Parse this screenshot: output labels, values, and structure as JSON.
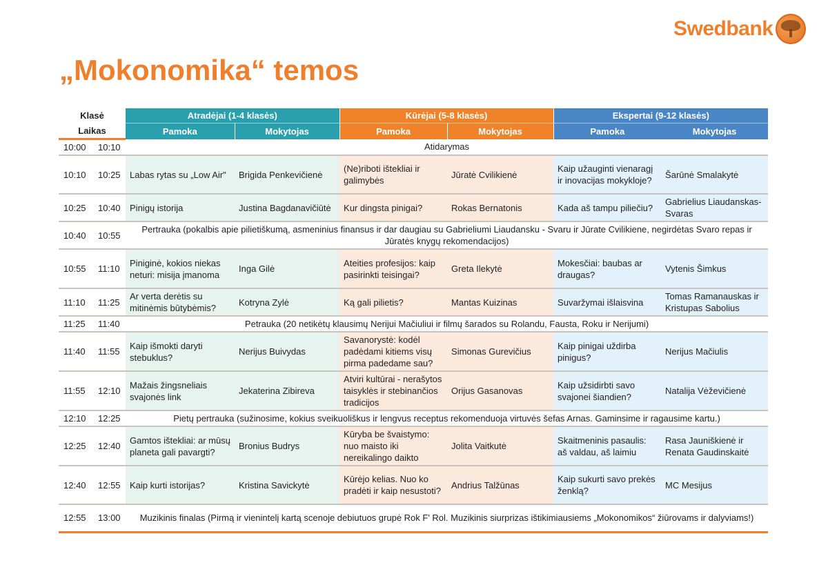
{
  "brand": {
    "name": "Swedbank",
    "accent": "#ee7f2d"
  },
  "title": "„Mokonomika“ temos",
  "header": {
    "class_label": "Klasė",
    "time_label": "Laikas",
    "groups": [
      {
        "name": "Atradėjai (1-4 klasės)",
        "color": "#2a9fae",
        "bg": "#e7f3ef"
      },
      {
        "name": "Kūrėjai (5-8 klasės)",
        "color": "#f0822a",
        "bg": "#fce9de"
      },
      {
        "name": "Ekspertai (9-12 klasės)",
        "color": "#4a86c6",
        "bg": "#e3f1fb"
      }
    ],
    "lesson_label": "Pamoka",
    "teacher_label": "Mokytojas"
  },
  "rows": [
    {
      "start": "10:00",
      "end": "10:10",
      "break": "Atidarymas"
    },
    {
      "start": "10:10",
      "end": "10:25",
      "sessions": [
        {
          "lesson": "Labas rytas su „Low Air\"",
          "teacher": "Brigida Penkevičienė"
        },
        {
          "lesson": "(Ne)riboti ištekliai ir galimybės",
          "teacher": "Jūratė Cvilikienė"
        },
        {
          "lesson": "Kaip užauginti vienaragį ir inovacijas mokykloje?",
          "teacher": "Šarūnė Smalakytė"
        }
      ]
    },
    {
      "start": "10:25",
      "end": "10:40",
      "sessions": [
        {
          "lesson": "Pinigų istorija",
          "teacher": "Justina Bagdanavičiūtė"
        },
        {
          "lesson": "Kur dingsta pinigai?",
          "teacher": "Rokas Bernatonis"
        },
        {
          "lesson": "Kada aš tampu piliečiu?",
          "teacher": "Gabrielius Liaudanskas-Svaras"
        }
      ]
    },
    {
      "start": "10:40",
      "end": "10:55",
      "break": "Pertrauka (pokalbis apie pilietiškumą, asmeninius finansus ir dar daugiau su Gabrieliumi Liaudansku - Svaru ir Jūrate Cvilikiene, negirdėtas Svaro repas ir Jūratės knygų rekomendacijos)"
    },
    {
      "start": "10:55",
      "end": "11:10",
      "sessions": [
        {
          "lesson": "Piniginė, kokios niekas neturi: misija įmanoma",
          "teacher": "Inga Gilė"
        },
        {
          "lesson": "Ateities profesijos: kaip pasirinkti teisingai?",
          "teacher": "Greta Ilekytė"
        },
        {
          "lesson": "Mokesčiai: baubas ar draugas?",
          "teacher": "Vytenis Šimkus"
        }
      ]
    },
    {
      "start": "11:10",
      "end": "11:25",
      "sessions": [
        {
          "lesson": "Ar verta derėtis su mitinėmis būtybėmis?",
          "teacher": "Kotryna Zylė"
        },
        {
          "lesson": "Ką gali pilietis?",
          "teacher": "Mantas Kuizinas"
        },
        {
          "lesson": "Suvaržymai išlaisvina",
          "teacher": "Tomas Ramanauskas ir Kristupas Sabolius"
        }
      ]
    },
    {
      "start": "11:25",
      "end": "11:40",
      "break": "Petrauka (20 netikėtų klausimų Nerijui Mačiuliui ir filmų šarados su Rolandu, Fausta, Roku ir Nerijumi)"
    },
    {
      "start": "11:40",
      "end": "11:55",
      "sessions": [
        {
          "lesson": "Kaip išmokti daryti stebuklus?",
          "teacher": "Nerijus Buivydas"
        },
        {
          "lesson": "Savanorystė: kodėl padėdami kitiems visų pirma padedame sau?",
          "teacher": "Simonas Gurevičius"
        },
        {
          "lesson": "Kaip pinigai uždirba pinigus?",
          "teacher": "Nerijus Mačiulis"
        }
      ]
    },
    {
      "start": "11:55",
      "end": "12:10",
      "sessions": [
        {
          "lesson": "Mažais žingsneliais svajonės link",
          "teacher": "Jekaterina Zibireva"
        },
        {
          "lesson": "Atviri kultūrai - nerašytos taisyklės ir stebinančios tradicijos",
          "teacher": "Orijus Gasanovas"
        },
        {
          "lesson": "Kaip užsidirbti savo svajonei šiandien?",
          "teacher": "Natalija Vėževičienė"
        }
      ]
    },
    {
      "start": "12:10",
      "end": "12:25",
      "break": "Pietų pertrauka (sužinosime, kokius sveikuoliškus ir lengvus receptus rekomenduoja virtuvės šefas Arnas. Gaminsime ir ragausime kartu.)"
    },
    {
      "start": "12:25",
      "end": "12:40",
      "sessions": [
        {
          "lesson": "Gamtos ištekliai: ar mūsų planeta gali pavargti?",
          "teacher": "Bronius Budrys"
        },
        {
          "lesson": "Kūryba be švaistymo: nuo maisto iki nereikalingo daikto",
          "teacher": "Jolita Vaitkutė"
        },
        {
          "lesson": "Skaitmeninis pasaulis: aš valdau, aš laimiu",
          "teacher": "Rasa Jauniškienė ir Renata Gaudinskaitė"
        }
      ]
    },
    {
      "start": "12:40",
      "end": "12:55",
      "sessions": [
        {
          "lesson": "Kaip kurti istorijas?",
          "teacher": "Kristina Savickytė"
        },
        {
          "lesson": "Kūrėjo kelias. Nuo ko pradėti ir kaip nesustoti?",
          "teacher": "Andrius Talžūnas"
        },
        {
          "lesson": "Kaip sukurti savo prekės ženklą?",
          "teacher": "MC Mesijus"
        }
      ]
    },
    {
      "start": "12:55",
      "end": "13:00",
      "break": "Muzikinis finalas (Pirmą ir vienintelį kartą scenoje debiutuos grupė Rok F' Rol. Muzikinis siurprizas ištikimiausiems „Mokonomikos“  žiūrovams ir dalyviams!)"
    }
  ]
}
